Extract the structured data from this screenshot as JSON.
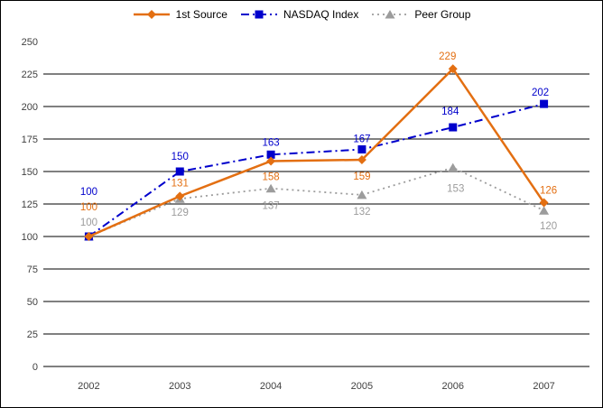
{
  "chart_data": {
    "type": "line",
    "title": "",
    "x": [
      "2002",
      "2003",
      "2004",
      "2005",
      "2006",
      "2007"
    ],
    "series": [
      {
        "name": "1st Source",
        "values": [
          100,
          131,
          158,
          159,
          229,
          126
        ],
        "color": "#E36F12",
        "marker": "diamond",
        "line_style": "solid"
      },
      {
        "name": "NASDAQ Index",
        "values": [
          100,
          150,
          163,
          167,
          184,
          202
        ],
        "color": "#0000CC",
        "marker": "square",
        "line_style": "dash-dot"
      },
      {
        "name": "Peer Group",
        "values": [
          100,
          129,
          137,
          132,
          153,
          120
        ],
        "color": "#9C9C9C",
        "marker": "triangle",
        "line_style": "dashed"
      }
    ],
    "xlabel": "",
    "ylabel": "",
    "ylim": [
      0,
      250
    ],
    "ytick_step": 25,
    "ytick_labels": [
      "0",
      "25",
      "50",
      "75",
      "100",
      "125",
      "150",
      "175",
      "200",
      "225",
      "250"
    ],
    "grid": "horizontal",
    "grid_color": "#000000",
    "axis_label_color": "#404040",
    "legend_position": "top",
    "data_labels_visible": true
  }
}
